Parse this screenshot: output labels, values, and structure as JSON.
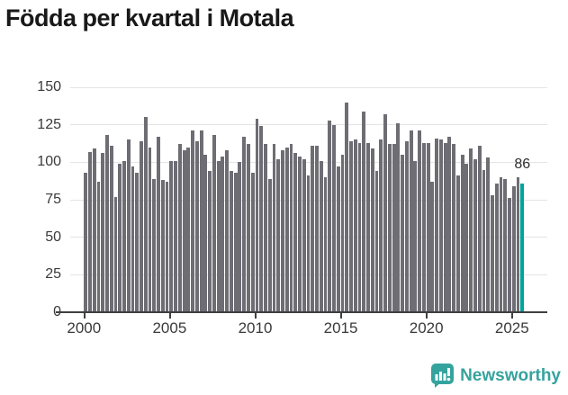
{
  "title": "Födda per kvartal i Motala",
  "annotation": {
    "last_value_label": "86"
  },
  "branding": {
    "logo_text": "Newsworthy"
  },
  "colors": {
    "bar": "#6e6d74",
    "highlight_bar": "#02a39b",
    "brand_teal": "#35a39d",
    "title_text": "#191919",
    "axis": "#3f3f42",
    "tick_label": "#3a3a3a",
    "gridline": "#e4e4e4",
    "background": "#ffffff"
  },
  "chart_data": {
    "type": "bar",
    "title": "Födda per kvartal i Motala",
    "xlabel": "",
    "ylabel": "",
    "ylim": [
      0,
      150
    ],
    "y_ticks": [
      0,
      25,
      50,
      75,
      100,
      125,
      150
    ],
    "x_tick_labels": [
      "2000",
      "2005",
      "2010",
      "2015",
      "2020",
      "2025"
    ],
    "grid": "horizontal",
    "legend": "none",
    "frequency": "quarterly",
    "start_period": "2000 Q1",
    "end_period": "2025 Q3",
    "highlight_last_bar": true,
    "last_value_label": "86",
    "values": [
      93,
      107,
      109,
      87,
      106,
      118,
      111,
      77,
      99,
      101,
      115,
      97,
      93,
      114,
      130,
      110,
      89,
      117,
      88,
      87,
      101,
      101,
      112,
      108,
      110,
      121,
      114,
      121,
      105,
      94,
      118,
      101,
      104,
      108,
      94,
      93,
      100,
      117,
      112,
      93,
      129,
      124,
      112,
      89,
      112,
      102,
      108,
      110,
      112,
      106,
      104,
      102,
      91,
      111,
      111,
      101,
      90,
      128,
      125,
      97,
      105,
      140,
      114,
      115,
      113,
      134,
      113,
      109,
      94,
      115,
      132,
      112,
      112,
      126,
      105,
      114,
      121,
      101,
      121,
      113,
      113,
      87,
      116,
      115,
      113,
      117,
      112,
      91,
      105,
      99,
      109,
      102,
      111,
      95,
      103,
      78,
      86,
      90,
      89,
      76,
      84,
      90,
      86
    ]
  }
}
